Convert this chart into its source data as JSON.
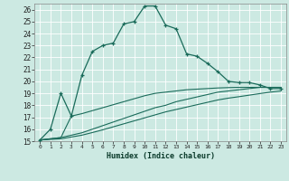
{
  "xlabel": "Humidex (Indice chaleur)",
  "background_color": "#cce9e2",
  "grid_color": "#ffffff",
  "line_color": "#1a6b5a",
  "xlim": [
    -0.5,
    23.5
  ],
  "ylim": [
    15,
    26.5
  ],
  "xticks": [
    0,
    1,
    2,
    3,
    4,
    5,
    6,
    7,
    8,
    9,
    10,
    11,
    12,
    13,
    14,
    15,
    16,
    17,
    18,
    19,
    20,
    21,
    22,
    23
  ],
  "yticks": [
    15,
    16,
    17,
    18,
    19,
    20,
    21,
    22,
    23,
    24,
    25,
    26
  ],
  "series": [
    {
      "x": [
        0,
        1,
        2,
        3,
        4,
        5,
        6,
        7,
        8,
        9,
        10,
        11,
        12,
        13,
        14,
        15,
        16,
        17,
        18,
        19,
        20,
        21,
        22,
        23
      ],
      "y": [
        15.1,
        16.0,
        19.0,
        17.1,
        20.5,
        22.5,
        23.0,
        23.2,
        24.8,
        25.0,
        26.3,
        26.3,
        24.7,
        24.4,
        22.3,
        22.1,
        21.5,
        20.8,
        20.0,
        19.9,
        19.9,
        19.7,
        19.4,
        19.4
      ],
      "marker": true
    },
    {
      "x": [
        0,
        2,
        3,
        4,
        5,
        6,
        7,
        8,
        9,
        10,
        11,
        12,
        13,
        14,
        15,
        16,
        17,
        18,
        19,
        20,
        21,
        22,
        23
      ],
      "y": [
        15.1,
        15.3,
        17.1,
        17.3,
        17.55,
        17.8,
        18.05,
        18.3,
        18.55,
        18.8,
        19.0,
        19.1,
        19.2,
        19.3,
        19.35,
        19.4,
        19.45,
        19.48,
        19.5,
        19.5,
        19.5,
        19.5,
        19.5
      ],
      "marker": false
    },
    {
      "x": [
        0,
        2,
        3,
        4,
        5,
        6,
        7,
        8,
        9,
        10,
        11,
        12,
        13,
        14,
        15,
        16,
        17,
        18,
        19,
        20,
        21,
        22,
        23
      ],
      "y": [
        15.1,
        15.3,
        15.5,
        15.7,
        16.0,
        16.3,
        16.6,
        16.9,
        17.2,
        17.5,
        17.8,
        18.0,
        18.3,
        18.5,
        18.7,
        18.9,
        19.1,
        19.2,
        19.3,
        19.4,
        19.5,
        19.5,
        19.5
      ],
      "marker": false
    },
    {
      "x": [
        0,
        2,
        3,
        4,
        5,
        6,
        7,
        8,
        9,
        10,
        11,
        12,
        13,
        14,
        15,
        16,
        17,
        18,
        19,
        20,
        21,
        22,
        23
      ],
      "y": [
        15.1,
        15.2,
        15.35,
        15.5,
        15.72,
        15.95,
        16.2,
        16.45,
        16.7,
        16.95,
        17.2,
        17.45,
        17.65,
        17.85,
        18.05,
        18.25,
        18.45,
        18.6,
        18.72,
        18.85,
        18.98,
        19.1,
        19.2
      ],
      "marker": false
    }
  ]
}
